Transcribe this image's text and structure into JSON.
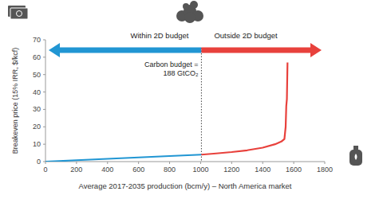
{
  "chart_data": {
    "type": "line",
    "x_label": "Average 2017-2035 production (bcm/y) – North America market",
    "y_label": "Breakeven price (15% IRR, $/kcf)",
    "xlim": [
      0,
      1800
    ],
    "xticks": [
      0,
      200,
      400,
      600,
      800,
      1000,
      1200,
      1400,
      1600,
      1800
    ],
    "ylim": [
      0,
      70
    ],
    "yticks": [
      0,
      10,
      20,
      30,
      40,
      50,
      60,
      70
    ],
    "grid": false,
    "annotation": {
      "lines": [
        "Carbon budget =",
        "188 GtCO₂"
      ],
      "x": 1005
    },
    "regions": [
      {
        "label": "Within 2D budget",
        "color": "#2196d3"
      },
      {
        "label": "Outside 2D budget",
        "color": "#e8413c"
      }
    ],
    "series": [
      {
        "color": "#2196d3",
        "x": [
          0,
          200,
          400,
          600,
          800,
          1005
        ],
        "values": [
          0,
          0.8,
          1.6,
          2.4,
          3.2,
          4
        ]
      },
      {
        "color": "#e8413c",
        "x": [
          1005,
          1100,
          1200,
          1300,
          1400,
          1480,
          1520,
          1540,
          1548,
          1552,
          1556,
          1560
        ],
        "values": [
          4,
          4.7,
          5.5,
          6.5,
          8,
          10,
          11.5,
          13,
          20,
          32,
          36,
          57
        ]
      }
    ]
  }
}
